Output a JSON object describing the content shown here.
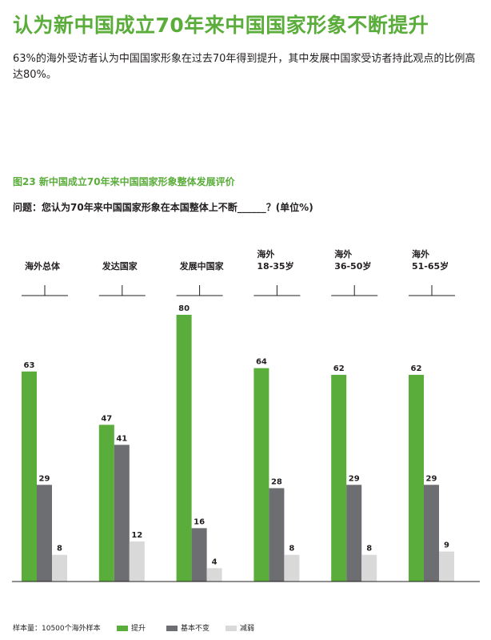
{
  "page": {
    "title": "认为新中国成立70年来中国国家形象不断提升",
    "intro": "63%的海外受访者认为中国国家形象在过去70年得到提升，其中发展中国家受访者持此观点的比例高达80%。",
    "figure_title": "图23  新中国成立70年来中国国家形象整体发展评价",
    "question": "问题：您认为70年来中国国家形象在本国整体上不断______？(单位%)"
  },
  "legend": {
    "sample_note": "样本量：10500个海外样本",
    "items": [
      {
        "label": "提升",
        "color": "#5aad3a"
      },
      {
        "label": "基本不变",
        "color": "#6d6e71"
      },
      {
        "label": "减弱",
        "color": "#d9d9d9"
      }
    ]
  },
  "chart_data": {
    "type": "bar",
    "categories": [
      [
        "海外总体"
      ],
      [
        "发达国家"
      ],
      [
        "发展中国家"
      ],
      [
        "海外",
        "18-35岁"
      ],
      [
        "海外",
        "36-50岁"
      ],
      [
        "海外",
        "51-65岁"
      ]
    ],
    "series": [
      {
        "name": "提升",
        "color": "#5aad3a",
        "values": [
          63,
          47,
          80,
          64,
          62,
          62
        ]
      },
      {
        "name": "基本不变",
        "color": "#6d6e71",
        "values": [
          29,
          41,
          16,
          28,
          29,
          29
        ]
      },
      {
        "name": "减弱",
        "color": "#d9d9d9",
        "values": [
          8,
          12,
          4,
          8,
          8,
          9
        ]
      }
    ],
    "ylim": [
      0,
      80
    ],
    "grid": false,
    "data_labels": true,
    "legend_position": "bottom"
  }
}
